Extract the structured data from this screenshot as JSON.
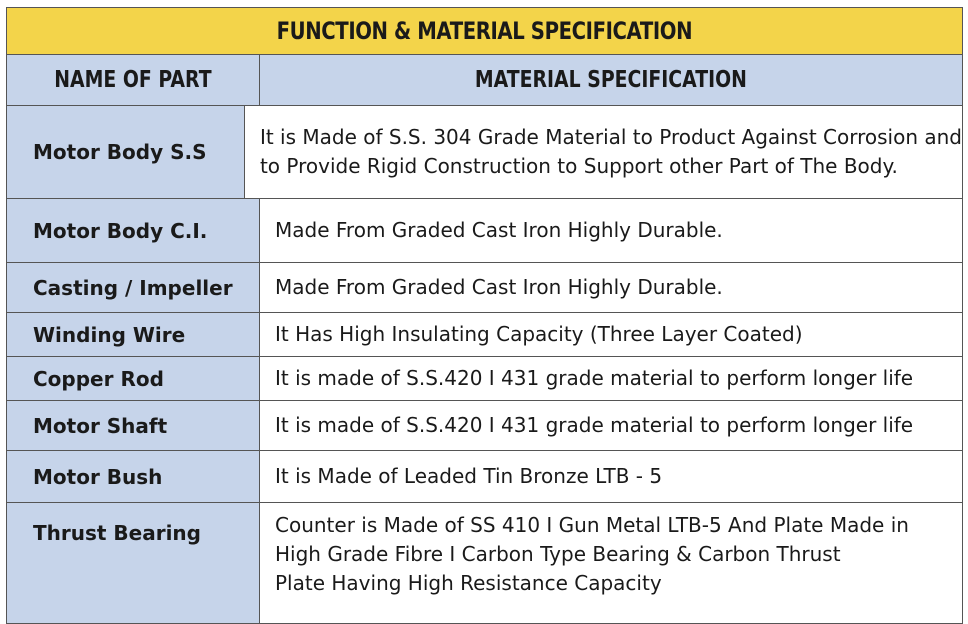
{
  "title": "FUNCTION & MATERIAL SPECIFICATION",
  "headers": {
    "name": "NAME OF PART",
    "spec": "MATERIAL SPECIFICATION"
  },
  "rows": [
    {
      "name": "Motor Body S.S",
      "spec_lines": [
        "It is Made of S.S. 304 Grade Material to Product Against Corrosion and",
        "to Provide Rigid Construction to Support other Part of The Body."
      ]
    },
    {
      "name": "Motor Body C.I.",
      "spec_lines": [
        " Made From Graded Cast Iron Highly Durable."
      ]
    },
    {
      "name": "Casting / Impeller",
      "spec_lines": [
        "Made From Graded Cast Iron Highly Durable."
      ]
    },
    {
      "name": "Winding Wire",
      "spec_lines": [
        "It Has High Insulating Capacity (Three Layer Coated)"
      ]
    },
    {
      "name": "Copper Rod",
      "spec_lines": [
        "It is made of S.S.420 I 431 grade material to perform longer life"
      ]
    },
    {
      "name": "Motor Shaft",
      "spec_lines": [
        "It is made of S.S.420 I 431 grade material to perform longer life"
      ]
    },
    {
      "name": "Motor Bush",
      "spec_lines": [
        "It is Made of Leaded Tin Bronze LTB - 5"
      ]
    },
    {
      "name": "Thrust Bearing",
      "spec_lines": [
        "Counter is Made of SS 410 I Gun Metal LTB-5 And Plate Made in",
        "High Grade Fibre I Carbon Type Bearing & Carbon Thrust",
        "Plate Having High Resistance Capacity"
      ]
    }
  ]
}
